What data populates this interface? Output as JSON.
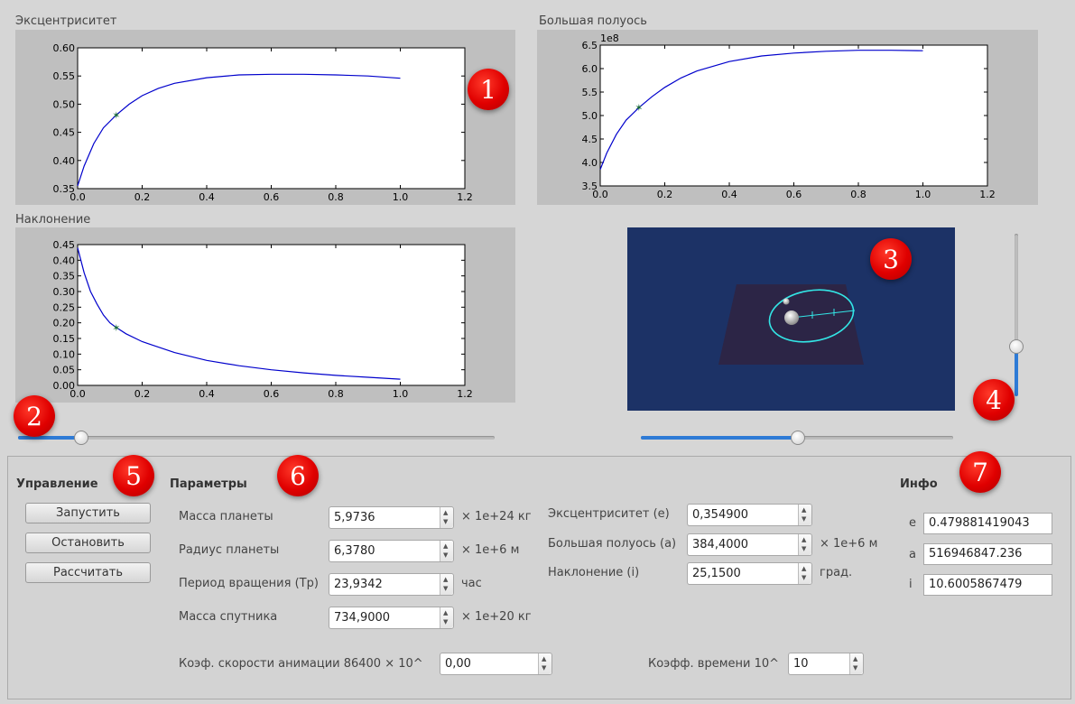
{
  "plots": {
    "eccentricity": {
      "title": "Эксцентриситет",
      "x_ticks": [
        "0.0",
        "0.2",
        "0.4",
        "0.6",
        "0.8",
        "1.0",
        "1.2"
      ],
      "y_ticks": [
        "0.35",
        "0.40",
        "0.45",
        "0.50",
        "0.55",
        "0.60"
      ],
      "offset_label": ""
    },
    "semimajor": {
      "title": "Большая полуось",
      "x_ticks": [
        "0.0",
        "0.2",
        "0.4",
        "0.6",
        "0.8",
        "1.0",
        "1.2"
      ],
      "y_ticks": [
        "3.5",
        "4.0",
        "4.5",
        "5.0",
        "5.5",
        "6.0",
        "6.5"
      ],
      "offset_label": "1e8"
    },
    "inclination": {
      "title": "Наклонение",
      "x_ticks": [
        "0.0",
        "0.2",
        "0.4",
        "0.6",
        "0.8",
        "1.0",
        "1.2"
      ],
      "y_ticks": [
        "0.00",
        "0.05",
        "0.10",
        "0.15",
        "0.20",
        "0.25",
        "0.30",
        "0.35",
        "0.40",
        "0.45"
      ],
      "offset_label": ""
    }
  },
  "chart_data": [
    {
      "type": "line",
      "title": "Эксцентриситет",
      "xlim": [
        0.0,
        1.2
      ],
      "ylim": [
        0.35,
        0.6
      ],
      "x": [
        0.0,
        0.02,
        0.05,
        0.08,
        0.12,
        0.16,
        0.2,
        0.25,
        0.3,
        0.4,
        0.5,
        0.6,
        0.7,
        0.8,
        0.9,
        1.0
      ],
      "y": [
        0.355,
        0.39,
        0.43,
        0.458,
        0.481,
        0.5,
        0.515,
        0.528,
        0.537,
        0.547,
        0.552,
        0.553,
        0.553,
        0.552,
        0.55,
        0.546
      ],
      "marker": {
        "x": 0.12,
        "y": 0.481
      },
      "color": "#0000cc"
    },
    {
      "type": "line",
      "title": "Большая полуось",
      "xlim": [
        0.0,
        1.2
      ],
      "ylim": [
        3.5,
        6.5
      ],
      "y_offset": "1e8",
      "x": [
        0.0,
        0.02,
        0.05,
        0.08,
        0.12,
        0.16,
        0.2,
        0.25,
        0.3,
        0.4,
        0.5,
        0.6,
        0.7,
        0.8,
        0.9,
        1.0
      ],
      "y": [
        3.85,
        4.2,
        4.6,
        4.9,
        5.17,
        5.4,
        5.6,
        5.8,
        5.95,
        6.15,
        6.27,
        6.33,
        6.37,
        6.39,
        6.39,
        6.38
      ],
      "marker": {
        "x": 0.12,
        "y": 5.17
      },
      "color": "#0000cc"
    },
    {
      "type": "line",
      "title": "Наклонение",
      "xlim": [
        0.0,
        1.2
      ],
      "ylim": [
        0.0,
        0.45
      ],
      "x": [
        0.0,
        0.01,
        0.02,
        0.04,
        0.06,
        0.08,
        0.1,
        0.12,
        0.15,
        0.2,
        0.3,
        0.4,
        0.5,
        0.6,
        0.7,
        0.8,
        0.9,
        1.0
      ],
      "y": [
        0.44,
        0.4,
        0.36,
        0.3,
        0.26,
        0.225,
        0.2,
        0.185,
        0.165,
        0.14,
        0.105,
        0.08,
        0.063,
        0.05,
        0.04,
        0.032,
        0.026,
        0.02
      ],
      "marker": {
        "x": 0.12,
        "y": 0.185
      },
      "color": "#0000cc"
    }
  ],
  "badges": [
    "1",
    "2",
    "3",
    "4",
    "5",
    "6",
    "7"
  ],
  "sliders": {
    "time_slider_value": 0.13,
    "view_slider_value": 0.5,
    "zoom_slider_value": 0.3
  },
  "controls": {
    "heading": "Управление",
    "start": "Запустить",
    "stop": "Остановить",
    "calculate": "Рассчитать"
  },
  "params": {
    "heading": "Параметры",
    "planet_mass": {
      "label": "Масса планеты",
      "value": "5,9736",
      "unit": "× 1e+24 кг"
    },
    "planet_radius": {
      "label": "Радиус планеты",
      "value": "6,3780",
      "unit": "× 1e+6 м"
    },
    "rotation_period": {
      "label": "Период вращения (Tp)",
      "value": "23,9342",
      "unit": "час"
    },
    "satellite_mass": {
      "label": "Масса спутника",
      "value": "734,9000",
      "unit": "× 1e+20 кг"
    },
    "eccentricity": {
      "label": "Эксцентриситет (e)",
      "value": "0,354900",
      "unit": ""
    },
    "semimajor_axis": {
      "label": "Большая полуось (a)",
      "value": "384,4000",
      "unit": "× 1e+6 м"
    },
    "inclination": {
      "label": "Наклонение (i)",
      "value": "25,1500",
      "unit": "град."
    },
    "anim_speed": {
      "label": "Коэф. скорости анимации 86400 × 10^",
      "value": "0,00"
    },
    "time_coef": {
      "label": "Коэфф. времени 10^",
      "value": "10"
    }
  },
  "info": {
    "heading": "Инфо",
    "e_label": "e",
    "e_value": "0.479881419043",
    "a_label": "a",
    "a_value": "516946847.236",
    "i_label": "i",
    "i_value": "10.6005867479"
  },
  "colors": {
    "accent": "#2e7bd6",
    "scene_bg": "#1c3266",
    "plane": "#2c2546",
    "orbit": "#33e6e6",
    "curve": "#0000cc",
    "badge": "#e00000"
  }
}
